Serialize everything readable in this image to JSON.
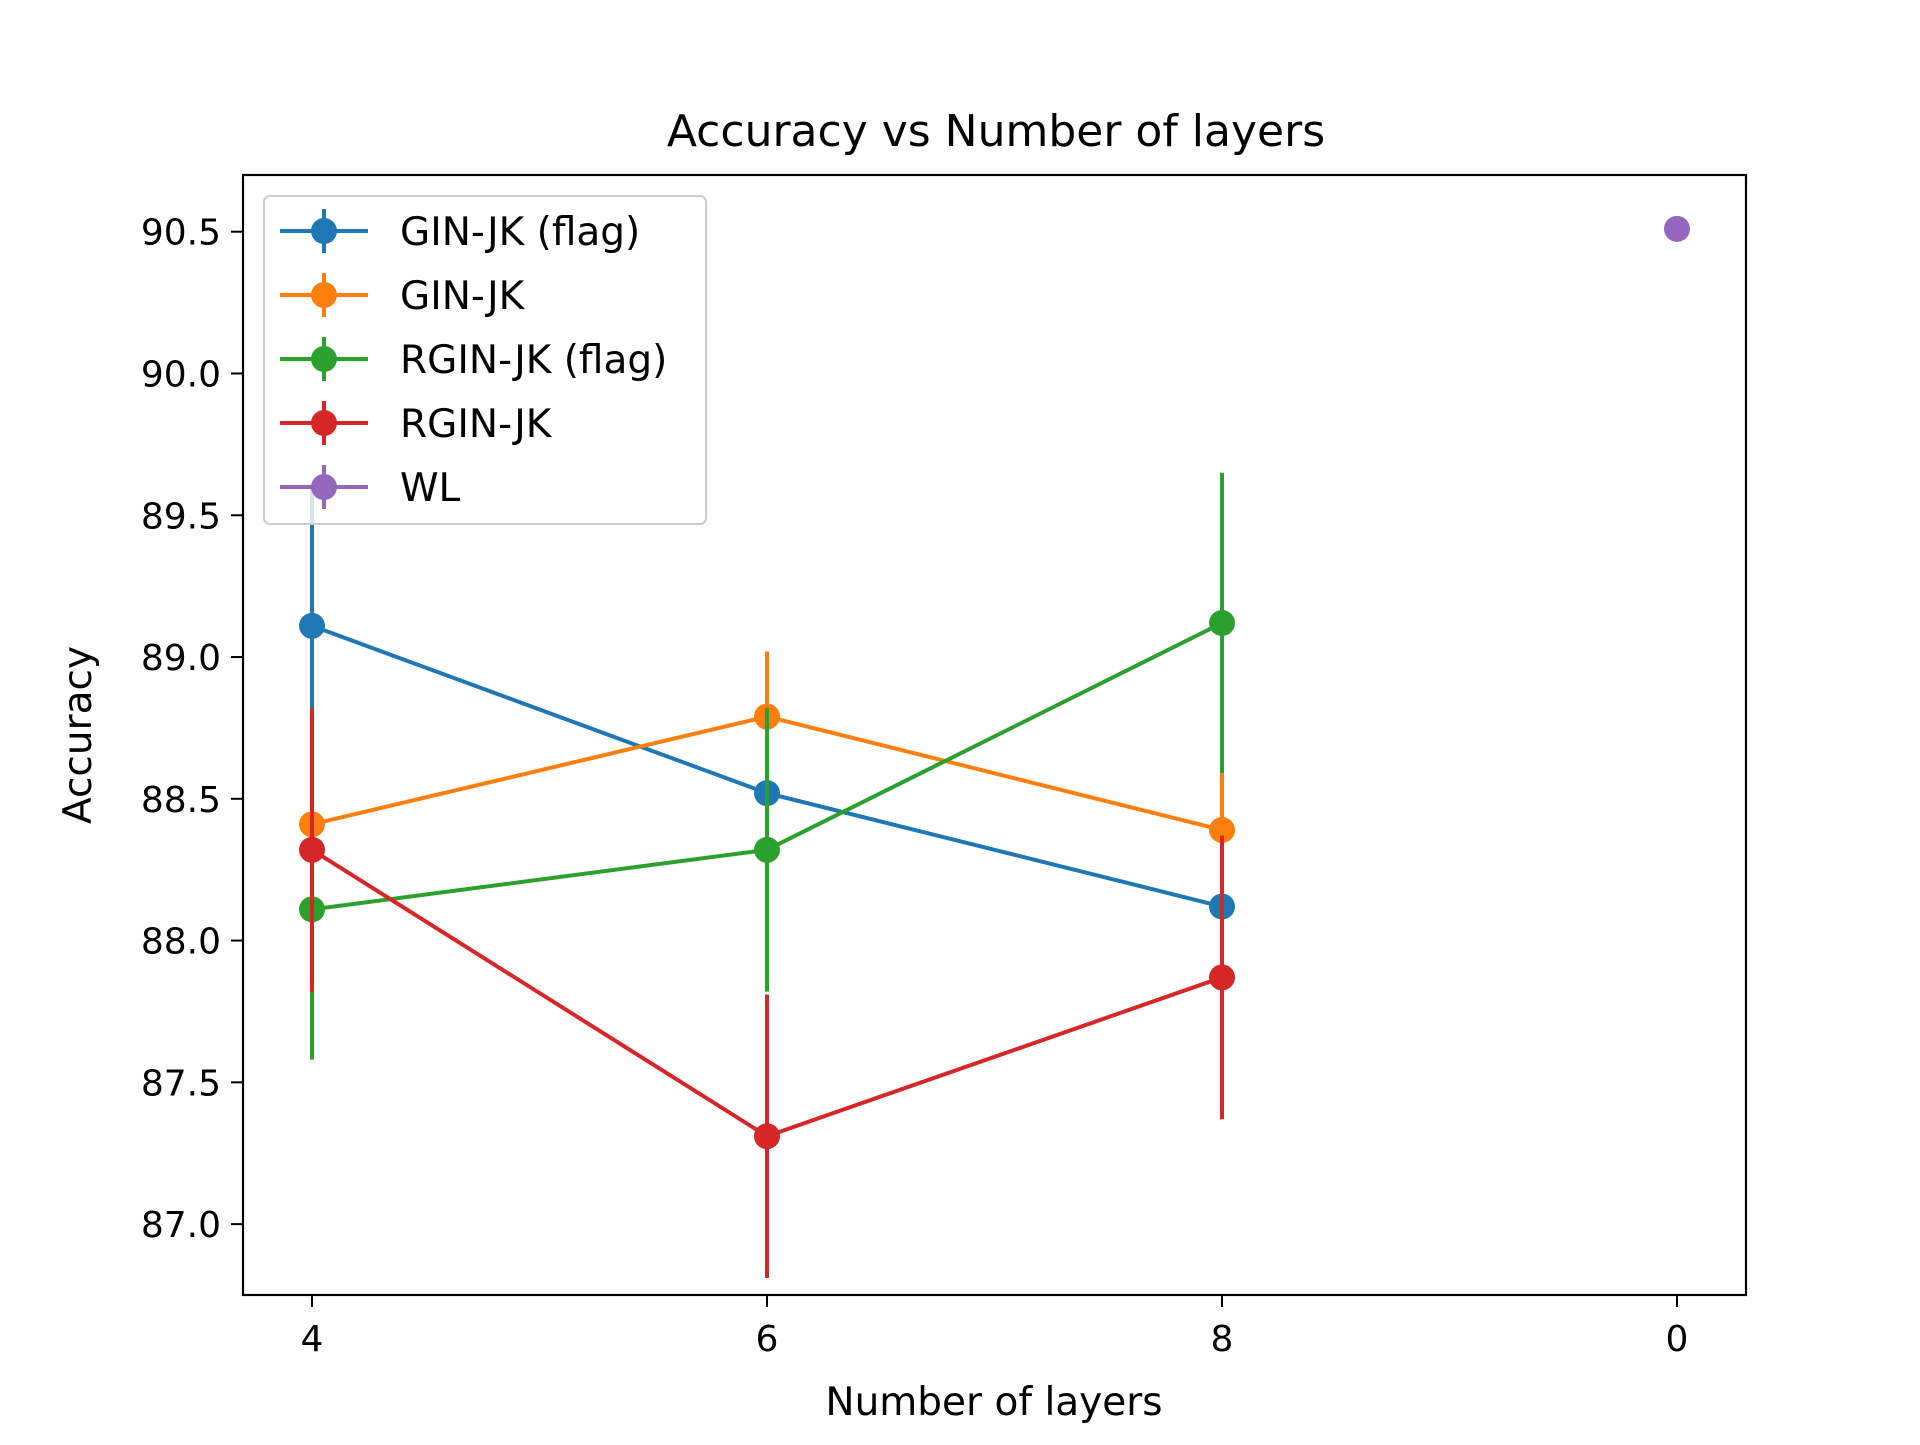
{
  "chart_data": {
    "type": "line",
    "title": "Accuracy vs Number of layers",
    "xlabel": "Number of layers",
    "ylabel": "Accuracy",
    "categories": [
      "4",
      "6",
      "8",
      "0"
    ],
    "ylim": [
      86.75,
      90.7
    ],
    "yticks": [
      "87.0",
      "87.5",
      "88.0",
      "88.5",
      "89.0",
      "89.5",
      "90.0",
      "90.5"
    ],
    "grid": false,
    "legend_position": "top-left",
    "series": [
      {
        "name": "GIN-JK (flag)",
        "color": "#1f77b4",
        "values": [
          89.11,
          88.52,
          88.12,
          null
        ],
        "errors": [
          0.5,
          null,
          null,
          null
        ]
      },
      {
        "name": "GIN-JK",
        "color": "#ff7f0e",
        "values": [
          88.41,
          88.79,
          88.39,
          null
        ],
        "errors": [
          0.3,
          0.23,
          0.2,
          null
        ]
      },
      {
        "name": "RGIN-JK (flag)",
        "color": "#2ca02c",
        "values": [
          88.11,
          88.32,
          89.12,
          null
        ],
        "errors": [
          0.53,
          0.5,
          0.53,
          null
        ]
      },
      {
        "name": "RGIN-JK",
        "color": "#d62728",
        "values": [
          88.32,
          87.31,
          87.87,
          null
        ],
        "errors": [
          0.5,
          0.5,
          0.5,
          null
        ]
      },
      {
        "name": "WL",
        "color": "#9467bd",
        "values": [
          null,
          null,
          null,
          90.51
        ],
        "errors": [
          null,
          null,
          null,
          null
        ]
      }
    ]
  }
}
